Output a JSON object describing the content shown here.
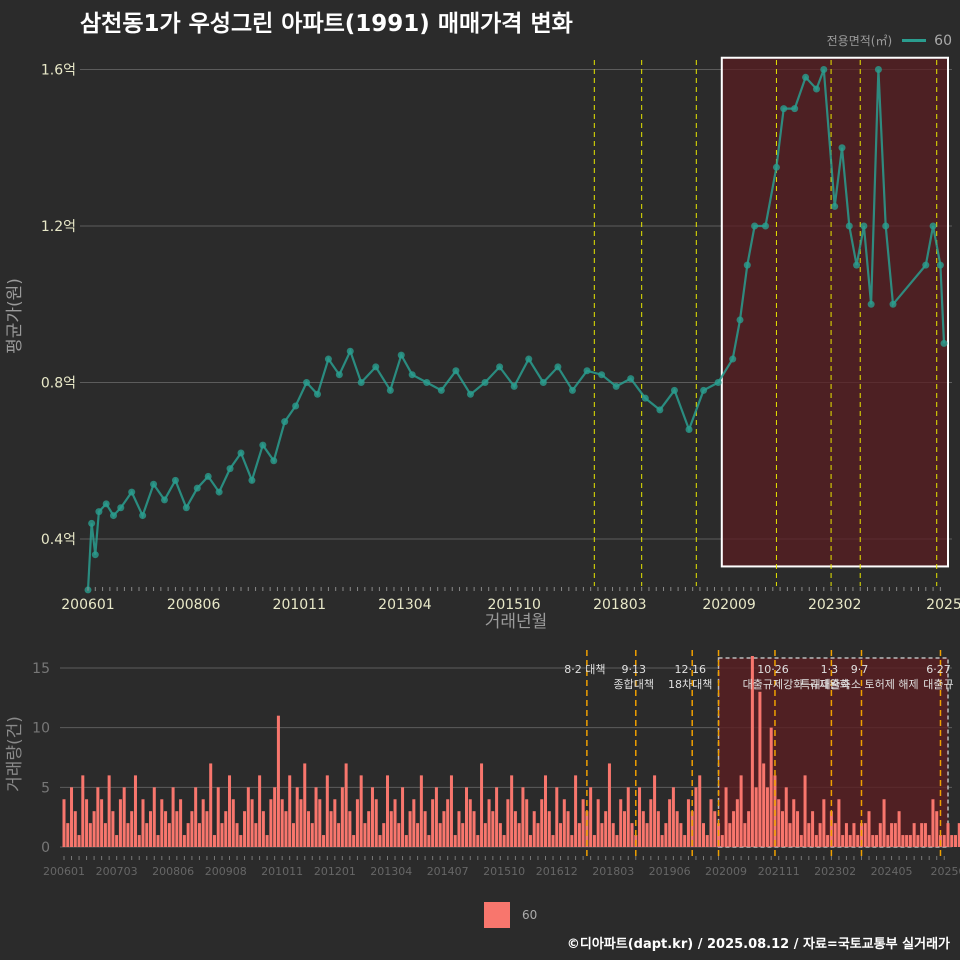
{
  "title": "삼천동1가 우성그린 아파트(1991) 매매가격 변화",
  "caption": "©디아파트(dapt.kr) / 2025.08.12 / 자료=국토교통부 실거래가",
  "colors": {
    "background": "#2b2b2b",
    "line": "#2a9d8f",
    "bar": "#f8766d",
    "policy_line_top": "#e6e600",
    "policy_line_bottom": "#f0a000",
    "highlight": "#5a1e22"
  },
  "chart_data": [
    {
      "type": "line",
      "name": "price",
      "xlabel": "거래년월",
      "ylabel": "평균가(원)",
      "legend_title": "전용면적(㎡)",
      "legend_placement": "top-right",
      "x_range": [
        "2006-01",
        "2025-08"
      ],
      "ylim": [
        0.28,
        1.66
      ],
      "y_ticks": [
        {
          "value": 0.4,
          "label": "0.4억"
        },
        {
          "value": 0.8,
          "label": "0.8억"
        },
        {
          "value": 1.2,
          "label": "1.2억"
        },
        {
          "value": 1.6,
          "label": "1.6억"
        }
      ],
      "x_ticks": [
        {
          "date": "2006-01",
          "label": "200601"
        },
        {
          "date": "2008-06",
          "label": "200806"
        },
        {
          "date": "2010-11",
          "label": "201011"
        },
        {
          "date": "2013-04",
          "label": "201304"
        },
        {
          "date": "2015-10",
          "label": "201510"
        },
        {
          "date": "2018-03",
          "label": "201803"
        },
        {
          "date": "2020-09",
          "label": "202009"
        },
        {
          "date": "2023-02",
          "label": "202302"
        },
        {
          "date": "2025-08",
          "label": "2025"
        }
      ],
      "policy_dates": [
        "2017-08",
        "2018-09",
        "2019-12",
        "2021-10",
        "2023-01",
        "2023-09",
        "2025-06"
      ],
      "highlight_range": [
        "2020-07",
        "2025-08"
      ],
      "series": [
        {
          "name": "60",
          "points": [
            [
              "2006-01",
              0.27
            ],
            [
              "2006-02",
              0.44
            ],
            [
              "2006-03",
              0.36
            ],
            [
              "2006-04",
              0.47
            ],
            [
              "2006-06",
              0.49
            ],
            [
              "2006-08",
              0.46
            ],
            [
              "2006-10",
              0.48
            ],
            [
              "2007-01",
              0.52
            ],
            [
              "2007-04",
              0.46
            ],
            [
              "2007-07",
              0.54
            ],
            [
              "2007-10",
              0.5
            ],
            [
              "2008-01",
              0.55
            ],
            [
              "2008-04",
              0.48
            ],
            [
              "2008-07",
              0.53
            ],
            [
              "2008-10",
              0.56
            ],
            [
              "2009-01",
              0.52
            ],
            [
              "2009-04",
              0.58
            ],
            [
              "2009-07",
              0.62
            ],
            [
              "2009-10",
              0.55
            ],
            [
              "2010-01",
              0.64
            ],
            [
              "2010-04",
              0.6
            ],
            [
              "2010-07",
              0.7
            ],
            [
              "2010-10",
              0.74
            ],
            [
              "2011-01",
              0.8
            ],
            [
              "2011-04",
              0.77
            ],
            [
              "2011-07",
              0.86
            ],
            [
              "2011-10",
              0.82
            ],
            [
              "2012-01",
              0.88
            ],
            [
              "2012-04",
              0.8
            ],
            [
              "2012-08",
              0.84
            ],
            [
              "2012-12",
              0.78
            ],
            [
              "2013-03",
              0.87
            ],
            [
              "2013-06",
              0.82
            ],
            [
              "2013-10",
              0.8
            ],
            [
              "2014-02",
              0.78
            ],
            [
              "2014-06",
              0.83
            ],
            [
              "2014-10",
              0.77
            ],
            [
              "2015-02",
              0.8
            ],
            [
              "2015-06",
              0.84
            ],
            [
              "2015-10",
              0.79
            ],
            [
              "2016-02",
              0.86
            ],
            [
              "2016-06",
              0.8
            ],
            [
              "2016-10",
              0.84
            ],
            [
              "2017-02",
              0.78
            ],
            [
              "2017-06",
              0.83
            ],
            [
              "2017-10",
              0.82
            ],
            [
              "2018-02",
              0.79
            ],
            [
              "2018-06",
              0.81
            ],
            [
              "2018-10",
              0.76
            ],
            [
              "2019-02",
              0.73
            ],
            [
              "2019-06",
              0.78
            ],
            [
              "2019-10",
              0.68
            ],
            [
              "2020-02",
              0.78
            ],
            [
              "2020-06",
              0.8
            ],
            [
              "2020-10",
              0.86
            ],
            [
              "2020-12",
              0.96
            ],
            [
              "2021-02",
              1.1
            ],
            [
              "2021-04",
              1.2
            ],
            [
              "2021-07",
              1.2
            ],
            [
              "2021-10",
              1.35
            ],
            [
              "2021-12",
              1.5
            ],
            [
              "2022-03",
              1.5
            ],
            [
              "2022-06",
              1.58
            ],
            [
              "2022-09",
              1.55
            ],
            [
              "2022-11",
              1.6
            ],
            [
              "2023-02",
              1.25
            ],
            [
              "2023-04",
              1.4
            ],
            [
              "2023-06",
              1.2
            ],
            [
              "2023-08",
              1.1
            ],
            [
              "2023-10",
              1.2
            ],
            [
              "2023-12",
              1.0
            ],
            [
              "2024-02",
              1.6
            ],
            [
              "2024-04",
              1.2
            ],
            [
              "2024-06",
              1.0
            ],
            [
              "2025-03",
              1.1
            ],
            [
              "2025-05",
              1.2
            ],
            [
              "2025-07",
              1.1
            ],
            [
              "2025-08",
              0.9
            ]
          ]
        }
      ]
    },
    {
      "type": "bar",
      "name": "volume",
      "xlabel": "",
      "ylabel": "거래량(건)",
      "legend_placement": "bottom",
      "x_range": [
        "2006-01",
        "2025-08"
      ],
      "ylim": [
        0,
        16
      ],
      "y_ticks": [
        {
          "value": 0,
          "label": "0"
        },
        {
          "value": 5,
          "label": "5"
        },
        {
          "value": 10,
          "label": "10"
        },
        {
          "value": 15,
          "label": "15"
        }
      ],
      "x_ticks": [
        {
          "date": "2006-01",
          "label": "200601"
        },
        {
          "date": "2007-03",
          "label": "200703"
        },
        {
          "date": "2008-06",
          "label": "200806"
        },
        {
          "date": "2009-08",
          "label": "200908"
        },
        {
          "date": "2010-11",
          "label": "201011"
        },
        {
          "date": "2012-01",
          "label": "201201"
        },
        {
          "date": "2013-04",
          "label": "201304"
        },
        {
          "date": "2014-07",
          "label": "201407"
        },
        {
          "date": "2015-10",
          "label": "201510"
        },
        {
          "date": "2016-12",
          "label": "201612"
        },
        {
          "date": "2018-03",
          "label": "201803"
        },
        {
          "date": "2019-06",
          "label": "201906"
        },
        {
          "date": "2020-09",
          "label": "202009"
        },
        {
          "date": "2021-11",
          "label": "202111"
        },
        {
          "date": "2023-02",
          "label": "202302"
        },
        {
          "date": "2024-05",
          "label": "202405"
        },
        {
          "date": "2025-08",
          "label": "20250"
        }
      ],
      "highlight_range": [
        "2020-07",
        "2025-08"
      ],
      "policy_events": [
        {
          "date": "2017-08",
          "label": "8·2 대책"
        },
        {
          "date": "2018-09",
          "label": "9·13\n종합대책"
        },
        {
          "date": "2019-12",
          "label": "12·16\n18차대책"
        },
        {
          "date": "2020-07",
          "label": ""
        },
        {
          "date": "2021-10",
          "label": "10·26\n대출규제강화"
        },
        {
          "date": "2023-01",
          "label": "1·3\n규제완화"
        },
        {
          "date": "2023-09",
          "label": "9·7\n특례대출축소 토허제 해제"
        },
        {
          "date": "2025-06",
          "label": "6·27\n대출규"
        }
      ],
      "series": [
        {
          "name": "60",
          "start": "2006-01",
          "values": [
            4,
            2,
            5,
            3,
            1,
            6,
            4,
            2,
            3,
            5,
            4,
            2,
            6,
            3,
            1,
            4,
            5,
            2,
            3,
            6,
            1,
            4,
            2,
            3,
            5,
            1,
            4,
            3,
            2,
            5,
            3,
            4,
            1,
            2,
            3,
            5,
            2,
            4,
            3,
            7,
            1,
            5,
            2,
            3,
            6,
            4,
            2,
            1,
            3,
            5,
            4,
            2,
            6,
            3,
            1,
            4,
            5,
            11,
            4,
            3,
            6,
            2,
            5,
            4,
            7,
            3,
            2,
            5,
            4,
            1,
            6,
            3,
            4,
            2,
            5,
            7,
            3,
            1,
            4,
            6,
            2,
            3,
            5,
            4,
            1,
            2,
            6,
            3,
            4,
            2,
            5,
            1,
            3,
            4,
            2,
            6,
            3,
            1,
            4,
            5,
            2,
            3,
            4,
            6,
            1,
            3,
            2,
            5,
            4,
            3,
            1,
            7,
            2,
            4,
            3,
            5,
            2,
            1,
            4,
            6,
            3,
            2,
            5,
            4,
            1,
            3,
            2,
            4,
            6,
            3,
            1,
            5,
            2,
            4,
            3,
            1,
            6,
            2,
            4,
            3,
            5,
            1,
            4,
            2,
            3,
            7,
            2,
            1,
            4,
            3,
            5,
            2,
            1,
            5,
            3,
            2,
            4,
            6,
            3,
            1,
            2,
            4,
            5,
            3,
            2,
            1,
            4,
            3,
            5,
            6,
            2,
            1,
            4,
            3,
            2,
            1,
            5,
            2,
            3,
            4,
            6,
            2,
            3,
            16,
            5,
            13,
            7,
            5,
            10,
            6,
            4,
            3,
            5,
            2,
            4,
            3,
            1,
            6,
            2,
            3,
            1,
            2,
            4,
            1,
            3,
            2,
            4,
            1,
            2,
            1,
            2,
            1,
            2,
            2,
            3,
            1,
            1,
            2,
            4,
            1,
            2,
            2,
            3,
            1,
            1,
            1,
            2,
            1,
            2,
            2,
            1,
            4,
            3,
            1,
            1,
            2,
            1,
            1,
            2,
            1,
            2,
            1,
            1,
            1,
            1,
            1,
            1,
            2,
            1,
            1,
            2,
            1,
            1,
            2,
            1,
            1
          ]
        }
      ]
    }
  ]
}
